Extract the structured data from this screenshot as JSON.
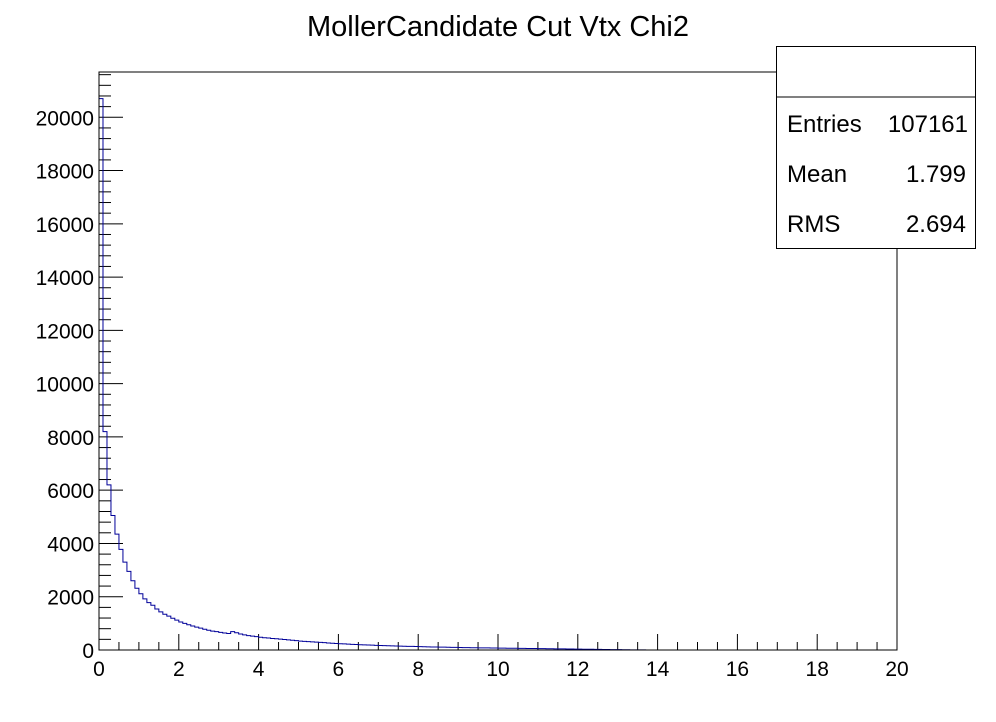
{
  "chart_data": {
    "type": "bar",
    "title": "MollerCandidate Cut Vtx Chi2",
    "xlabel": "",
    "ylabel": "",
    "xlim": [
      0,
      20
    ],
    "ylim": [
      0,
      21700
    ],
    "x_ticks": [
      0,
      2,
      4,
      6,
      8,
      10,
      12,
      14,
      16,
      18,
      20
    ],
    "y_ticks": [
      0,
      2000,
      4000,
      6000,
      8000,
      10000,
      12000,
      14000,
      16000,
      18000,
      20000
    ],
    "bin_width": 0.1,
    "values": [
      20700,
      8200,
      6200,
      5050,
      4350,
      3780,
      3300,
      2950,
      2600,
      2320,
      2110,
      1920,
      1780,
      1680,
      1540,
      1430,
      1340,
      1270,
      1190,
      1120,
      1050,
      1000,
      950,
      900,
      860,
      820,
      780,
      740,
      710,
      690,
      660,
      640,
      620,
      690,
      650,
      600,
      570,
      540,
      520,
      500,
      480,
      460,
      450,
      430,
      420,
      410,
      395,
      380,
      365,
      350,
      335,
      325,
      315,
      305,
      295,
      285,
      275,
      265,
      255,
      245,
      235,
      228,
      220,
      213,
      206,
      199,
      193,
      187,
      181,
      175,
      170,
      165,
      160,
      155,
      150,
      146,
      142,
      138,
      134,
      130,
      126,
      122,
      118,
      115,
      112,
      109,
      106,
      103,
      100,
      97,
      94,
      91,
      88,
      86,
      84,
      82,
      80,
      78,
      76,
      74,
      72,
      70,
      68,
      66,
      64,
      62,
      60,
      58,
      56,
      54,
      52,
      50,
      48,
      46,
      44,
      42,
      40,
      38,
      36,
      34,
      32,
      30,
      28,
      26,
      24,
      22,
      20,
      18,
      16,
      14,
      12,
      10,
      8,
      6,
      5,
      4,
      3,
      2,
      2,
      1
    ],
    "series_color": "#000099",
    "grid": false,
    "legend": "none"
  },
  "stats_box": {
    "entries_label": "Entries",
    "entries_value": "107161",
    "mean_label": "Mean",
    "mean_value": "1.799",
    "rms_label": "RMS",
    "rms_value": "2.694"
  }
}
